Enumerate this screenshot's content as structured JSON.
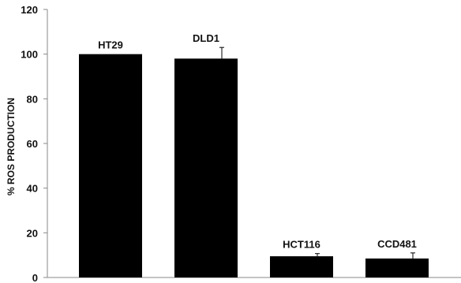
{
  "chart_data": {
    "type": "bar",
    "title": "",
    "xlabel": "",
    "ylabel": "% ROS PRODUCTION",
    "ylim": [
      0,
      120
    ],
    "yticks": [
      0,
      20,
      40,
      60,
      80,
      100,
      120
    ],
    "grid": false,
    "legend": "none",
    "bar_color": "#000000",
    "categories": [
      "HT29",
      "DLD1",
      "HCT116",
      "CCD481"
    ],
    "values": [
      100,
      98,
      9.5,
      8.5
    ],
    "error_bars": [
      0,
      5,
      1.2,
      2.5
    ]
  }
}
